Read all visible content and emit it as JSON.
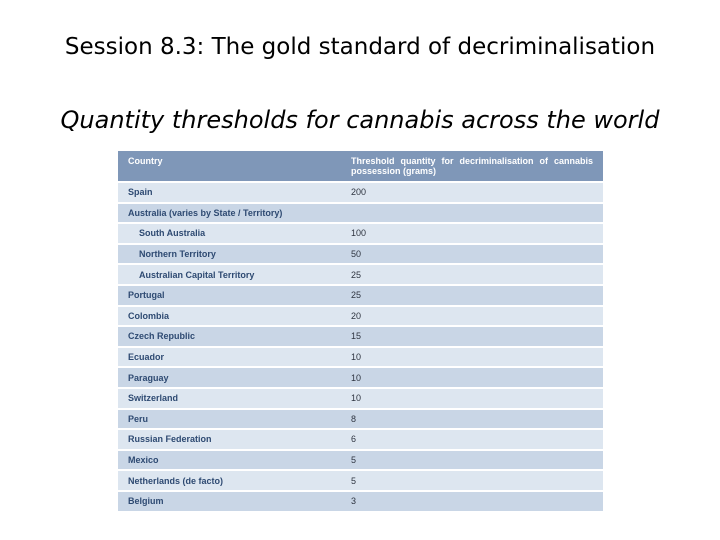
{
  "title": "Session 8.3: The gold standard of decriminalisation",
  "subtitle": "Quantity thresholds for cannabis across the world",
  "table": {
    "headers": {
      "country": "Country",
      "threshold": "Threshold quantity for decriminalisation of cannabis possession (grams)"
    },
    "rows": [
      {
        "country": "Spain",
        "value": "200",
        "indent": false
      },
      {
        "country": "Australia (varies by State / Territory)",
        "value": "",
        "indent": false
      },
      {
        "country": "South Australia",
        "value": "100",
        "indent": true
      },
      {
        "country": "Northern Territory",
        "value": "50",
        "indent": true
      },
      {
        "country": "Australian Capital Territory",
        "value": "25",
        "indent": true
      },
      {
        "country": "Portugal",
        "value": "25",
        "indent": false
      },
      {
        "country": "Colombia",
        "value": "20",
        "indent": false
      },
      {
        "country": "Czech Republic",
        "value": "15",
        "indent": false
      },
      {
        "country": "Ecuador",
        "value": "10",
        "indent": false
      },
      {
        "country": "Paraguay",
        "value": "10",
        "indent": false
      },
      {
        "country": "Switzerland",
        "value": "10",
        "indent": false
      },
      {
        "country": "Peru",
        "value": "8",
        "indent": false
      },
      {
        "country": "Russian Federation",
        "value": "6",
        "indent": false
      },
      {
        "country": "Mexico",
        "value": "5",
        "indent": false
      },
      {
        "country": "Netherlands (de facto)",
        "value": "5",
        "indent": false
      },
      {
        "country": "Belgium",
        "value": "3",
        "indent": false
      }
    ]
  }
}
